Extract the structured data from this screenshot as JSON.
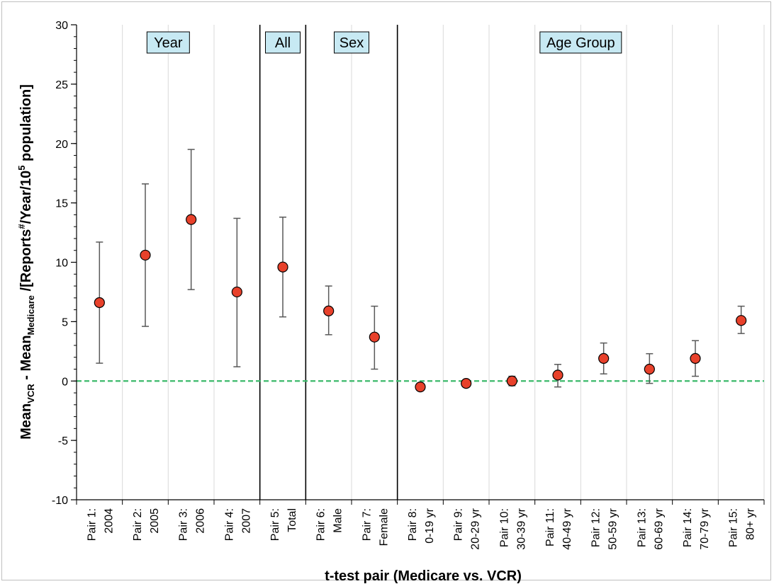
{
  "chart_data": {
    "type": "scatter",
    "title": "",
    "xlabel": "t-test pair (Medicare vs. VCR)",
    "ylabel": {
      "p1": "Mean",
      "sub1": "VCR",
      "p2": " - Mean",
      "sub2": "Medicare",
      "p3": " /[Reports",
      "sup1": "#",
      "p4": "/Year/10",
      "sup2": "5",
      "p5": " population]"
    },
    "ylim": [
      -10,
      30
    ],
    "yticks": [
      -10,
      -5,
      0,
      5,
      10,
      15,
      20,
      25,
      30
    ],
    "y_minor_step": 1,
    "reference_line": {
      "y": 0,
      "color": "#3cb96b",
      "style": "dashed"
    },
    "marker_color": "#e8412b",
    "errorbar_color": "#595959",
    "groups": [
      {
        "label": "Year",
        "start": 0,
        "end": 4
      },
      {
        "label": "All",
        "start": 4,
        "end": 5
      },
      {
        "label": "Sex",
        "start": 5,
        "end": 7
      },
      {
        "label": "Age Group",
        "start": 7,
        "end": 15
      }
    ],
    "group_label_fill": "#c7e9f3",
    "categories": [
      [
        "Pair 1:",
        "2004"
      ],
      [
        "Pair 2:",
        "2005"
      ],
      [
        "Pair 3:",
        "2006"
      ],
      [
        "Pair 4:",
        "2007"
      ],
      [
        "Pair 5:",
        "Total"
      ],
      [
        "Pair 6:",
        "Male"
      ],
      [
        "Pair 7:",
        "Female"
      ],
      [
        "Pair 8:",
        "0-19 yr"
      ],
      [
        "Pair 9:",
        "20-29 yr"
      ],
      [
        "Pair 10:",
        "30-39 yr"
      ],
      [
        "Pair 11:",
        "40-49 yr"
      ],
      [
        "Pair 12:",
        "50-59 yr"
      ],
      [
        "Pair 13:",
        "60-69 yr"
      ],
      [
        "Pair 14:",
        "70-79 yr"
      ],
      [
        "Pair 15:",
        "80+ yr"
      ]
    ],
    "values": [
      6.6,
      10.6,
      13.6,
      7.5,
      9.6,
      5.9,
      3.7,
      -0.5,
      -0.2,
      0.0,
      0.5,
      1.9,
      1.0,
      1.9,
      5.1
    ],
    "error_low": [
      1.5,
      4.6,
      7.7,
      1.2,
      5.4,
      3.9,
      1.0,
      -0.5,
      -0.3,
      -0.4,
      -0.5,
      0.6,
      -0.2,
      0.4,
      4.0
    ],
    "error_high": [
      11.7,
      16.6,
      19.5,
      13.7,
      13.8,
      8.0,
      6.3,
      -0.5,
      0.1,
      0.4,
      1.4,
      3.2,
      2.3,
      3.4,
      6.3
    ]
  }
}
